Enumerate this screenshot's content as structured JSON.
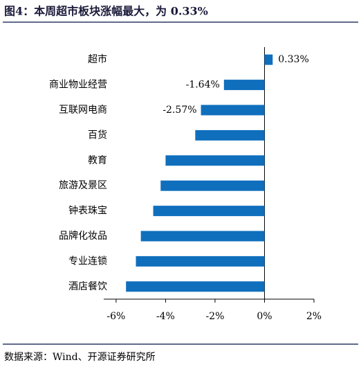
{
  "chart_data": {
    "type": "barh",
    "title": "图4：本周超市板块涨幅最大，为 0.33%",
    "source": "数据来源：Wind、开源证券研究所",
    "categories": [
      "超市",
      "商业物业经营",
      "互联网电商",
      "百货",
      "教育",
      "旅游及景区",
      "钟表珠宝",
      "品牌化妆品",
      "专业连锁",
      "酒店餐饮"
    ],
    "values": [
      0.33,
      -1.64,
      -2.57,
      -2.8,
      -4.0,
      -4.2,
      -4.5,
      -5.0,
      -5.2,
      -5.6
    ],
    "value_labels": [
      "0.33%",
      "-1.64%",
      "-2.57%",
      null,
      null,
      null,
      null,
      null,
      null,
      null
    ],
    "color": "#0f6fbd",
    "xlim": [
      -6.5,
      2
    ],
    "xticks": [
      {
        "value": -6,
        "label": "-6%"
      },
      {
        "value": -4,
        "label": "-4%"
      },
      {
        "value": -2,
        "label": "-2%"
      },
      {
        "value": 0,
        "label": "0%"
      },
      {
        "value": 2,
        "label": "2%"
      }
    ]
  }
}
